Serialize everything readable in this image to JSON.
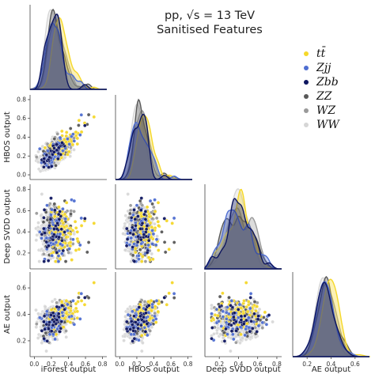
{
  "title": {
    "line1": "pp, √s = 13 TeV",
    "line2": "Sanitised Features"
  },
  "legend": [
    {
      "label": "tt̄",
      "color": "#f5d82a"
    },
    {
      "label": "Zjj",
      "color": "#4f6ed1"
    },
    {
      "label": "Zbb",
      "color": "#0e1660"
    },
    {
      "label": "ZZ",
      "color": "#585858"
    },
    {
      "label": "WZ",
      "color": "#9a9a9a"
    },
    {
      "label": "WW",
      "color": "#d6d6d6"
    }
  ],
  "chart_data": {
    "type": "scatter",
    "title": "pp, √s = 13 TeV Sanitised Features",
    "variables": [
      "iForest output",
      "HBOS output",
      "Deep SVDD output",
      "AE output"
    ],
    "axis_ranges": {
      "iForest output": [
        -0.05,
        0.85
      ],
      "HBOS output": [
        -0.05,
        0.85
      ],
      "Deep SVDD output": [
        0.05,
        0.85
      ],
      "AE output": [
        0.08,
        0.72
      ]
    },
    "ticks": {
      "iForest output": [
        "0.0",
        "0.2",
        "0.4",
        "0.6",
        "0.8"
      ],
      "HBOS output": [
        "0.0",
        "0.2",
        "0.4",
        "0.6",
        "0.8"
      ],
      "Deep SVDD output": [
        "0.2",
        "0.4",
        "0.6",
        "0.8"
      ],
      "AE output": [
        "0.2",
        "0.4",
        "0.6"
      ]
    },
    "series_colors": {
      "tt̄": "#f5d82a",
      "Zjj": "#4f6ed1",
      "Zbb": "#0e1660",
      "ZZ": "#585858",
      "WZ": "#9a9a9a",
      "WW": "#d6d6d6"
    },
    "kde_peaks": {
      "iForest output": {
        "tt̄": 0.2,
        "Zjj": 0.1,
        "Zbb": 0.1,
        "ZZ": 0.12,
        "WZ": 0.13,
        "WW": 0.13
      },
      "HBOS output": {
        "tt̄": 0.2,
        "Zjj": 0.12,
        "Zbb": 0.12,
        "ZZ": 0.14,
        "WZ": 0.15,
        "WW": 0.15
      },
      "Deep SVDD output": {
        "tt̄": 0.4,
        "Zjj": 0.4,
        "Zbb": 0.4,
        "ZZ": 0.4,
        "WZ": 0.4,
        "WW": 0.4
      },
      "AE output": {
        "tt̄": 0.44,
        "Zjj": 0.4,
        "Zbb": 0.4,
        "ZZ": 0.38,
        "WZ": 0.38,
        "WW": 0.36
      }
    },
    "grid": false,
    "legend_position": "top-right"
  }
}
